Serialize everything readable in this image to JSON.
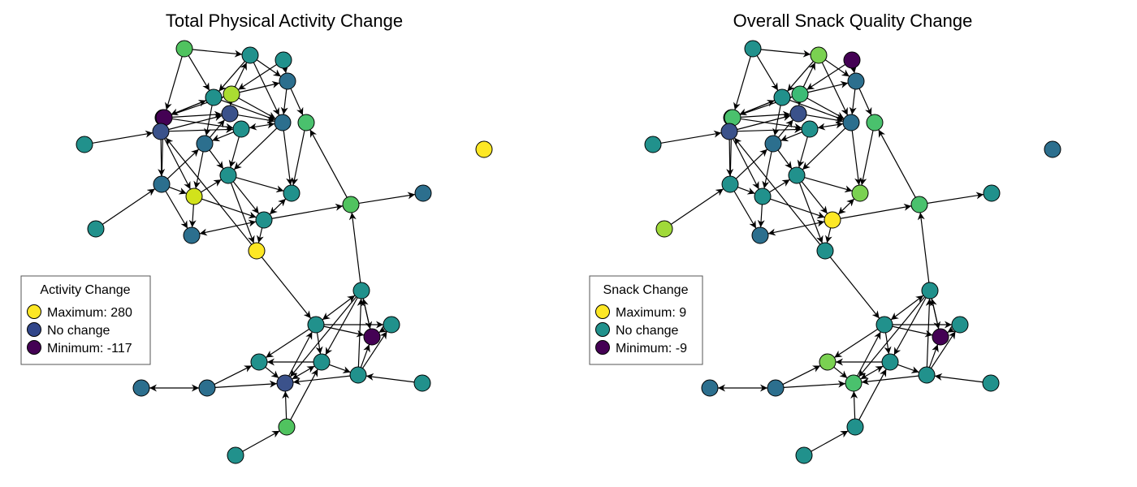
{
  "panels": [
    {
      "id": "activity",
      "title": "Total Physical Activity Change",
      "legend": {
        "title": "Activity Change",
        "items": [
          {
            "label": "Maximum: 280",
            "color": "#fde725"
          },
          {
            "label": "No change",
            "color": "#31468a"
          },
          {
            "label": "Minimum: -117",
            "color": "#440154"
          }
        ]
      },
      "node_colors": [
        "#50c35f",
        "#21918c",
        "#21918c",
        "#2c6f8e",
        "#21918c",
        "#aadc32",
        "#2c6f8e",
        "#440154",
        "#3b528b",
        "#3b528b",
        "#2c6f8e",
        "#4ac16d",
        "#21918c",
        "#2c6f8e",
        "#21918c",
        "#fde725",
        "#2c6f8e",
        "#21918c",
        "#d2e21b",
        "#50c35f",
        "#21918c",
        "#2c6f8e",
        "#21918c",
        "#2c6f8e",
        "#21918c",
        "#fde725",
        "#21918c",
        "#21918c",
        "#21918c",
        "#440154",
        "#21918c",
        "#3b528b",
        "#21918c",
        "#21918c",
        "#2c6f8e",
        "#2c6f8e",
        "#21918c",
        "#50c35f",
        "#21918c"
      ]
    },
    {
      "id": "snack",
      "title": "Overall Snack Quality Change",
      "legend": {
        "title": "Snack Change",
        "items": [
          {
            "label": "Maximum: 9",
            "color": "#fde725"
          },
          {
            "label": "No change",
            "color": "#21918c"
          },
          {
            "label": "Minimum: -9",
            "color": "#440154"
          }
        ]
      },
      "node_colors": [
        "#21918c",
        "#7ad151",
        "#440154",
        "#2c6f8e",
        "#21918c",
        "#3cbb75",
        "#21918c",
        "#4ac16d",
        "#3b528b",
        "#3b528b",
        "#2c6f8e",
        "#4ac16d",
        "#21918c",
        "#2c6f8e",
        "#21918c",
        "#2c6f8e",
        "#21918c",
        "#21918c",
        "#21918c",
        "#4ac16d",
        "#7ad151",
        "#21918c",
        "#fde725",
        "#2c6f8e",
        "#a0da39",
        "#21918c",
        "#21918c",
        "#21918c",
        "#21918c",
        "#440154",
        "#7ad151",
        "#4ac16d",
        "#21918c",
        "#21918c",
        "#2c6f8e",
        "#2c6f8e",
        "#21918c",
        "#21918c",
        "#21918c"
      ]
    }
  ]
}
